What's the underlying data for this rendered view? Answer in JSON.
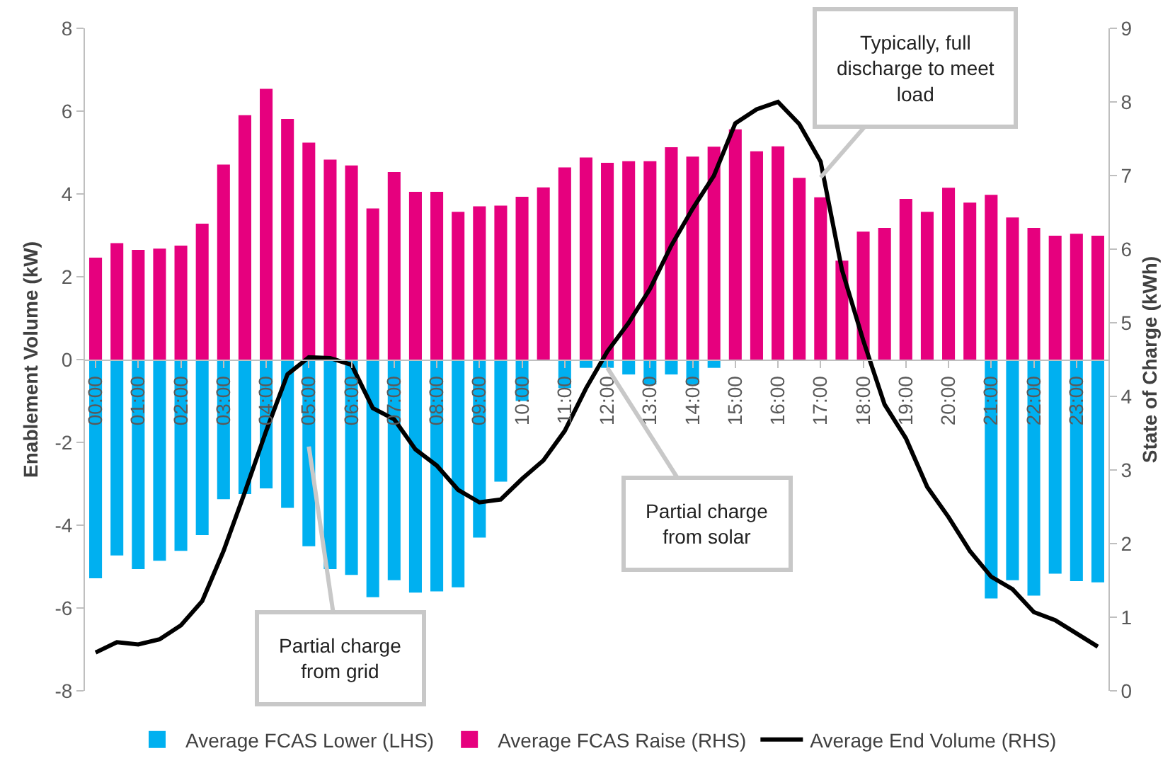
{
  "chart_data": {
    "type": "bar",
    "stacked": true,
    "ylabel": "Enablement Volume (kW)",
    "y2label": "State of Charge (kWh)",
    "categories": [
      "00:00",
      null,
      "01:00",
      null,
      "02:00",
      null,
      "03:00",
      null,
      "04:00",
      null,
      "05:00",
      null,
      "06:00",
      null,
      "07:00",
      null,
      "08:00",
      null,
      "09:00",
      null,
      "10:00",
      null,
      "11:00",
      null,
      "12:00",
      null,
      "13:00",
      null,
      "14:00",
      null,
      "15:00",
      null,
      "16:00",
      null,
      "17:00",
      null,
      "18:00",
      null,
      "19:00",
      null,
      "20:00",
      null,
      "21:00",
      null,
      "22:00",
      null,
      "23:00",
      null
    ],
    "series": [
      {
        "name": "Average FCAS Lower (LHS)",
        "color": "#00b0f0",
        "values": [
          -5.28,
          -4.73,
          -5.06,
          -4.86,
          -4.62,
          -4.24,
          -3.37,
          -3.25,
          -3.11,
          -3.58,
          -4.51,
          -5.06,
          -5.2,
          -5.74,
          -5.33,
          -5.63,
          -5.6,
          -5.5,
          -4.3,
          -2.95,
          -1.0,
          null,
          -0.69,
          -0.2,
          -0.2,
          -0.36,
          -0.6,
          -0.36,
          -0.6,
          -0.2,
          null,
          null,
          null,
          null,
          null,
          null,
          null,
          null,
          null,
          null,
          null,
          null,
          -5.77,
          -5.33,
          -5.7,
          -5.17,
          -5.35,
          -5.38
        ]
      },
      {
        "name": "Average FCAS Raise (RHS)",
        "color": "#e6007e",
        "values": [
          2.46,
          2.81,
          2.65,
          2.68,
          2.75,
          3.28,
          4.71,
          5.9,
          6.54,
          5.81,
          5.24,
          4.83,
          4.69,
          3.65,
          4.53,
          4.05,
          4.05,
          3.57,
          3.7,
          3.72,
          3.93,
          4.16,
          4.64,
          4.88,
          4.75,
          4.79,
          4.79,
          5.13,
          4.9,
          5.14,
          5.56,
          5.03,
          5.15,
          4.39,
          3.92,
          2.39,
          3.09,
          3.18,
          3.88,
          3.57,
          4.15,
          3.79,
          3.98,
          3.43,
          3.18,
          2.99,
          3.04,
          2.99
        ]
      },
      {
        "name": "Average End Volume (RHS)",
        "type": "line",
        "axis": "y2",
        "color": "#000000",
        "values": [
          0.52,
          0.66,
          0.63,
          0.7,
          0.89,
          1.22,
          1.9,
          2.7,
          3.53,
          4.3,
          4.53,
          4.52,
          4.43,
          3.84,
          3.69,
          3.28,
          3.06,
          2.73,
          2.56,
          2.6,
          2.88,
          3.13,
          3.53,
          4.11,
          4.61,
          5.0,
          5.46,
          6.05,
          6.55,
          7.0,
          7.71,
          7.9,
          8.0,
          7.7,
          7.19,
          5.72,
          4.76,
          3.89,
          3.43,
          2.77,
          2.36,
          1.9,
          1.55,
          1.38,
          1.07,
          0.96,
          0.78,
          0.6
        ]
      }
    ],
    "ylim": [
      -8,
      8
    ],
    "yticks": [
      -8,
      -6,
      -4,
      -2,
      0,
      2,
      4,
      6,
      8
    ],
    "y2lim": [
      0,
      9
    ],
    "y2ticks": [
      0,
      1,
      2,
      3,
      4,
      5,
      6,
      7,
      8,
      9
    ],
    "annotations": [
      {
        "text": "Partial charge\nfrom grid",
        "x": "05:00",
        "y": -2.1
      },
      {
        "text": "Partial charge\nfrom solar",
        "x": "12:00",
        "y": -0.2
      },
      {
        "text": "Typically, full\ndischarge to meet\nload",
        "x": "17:00",
        "y": 4.4
      }
    ],
    "grid": false,
    "legend": "bottom",
    "marker": "none",
    "line_style": "solid"
  }
}
